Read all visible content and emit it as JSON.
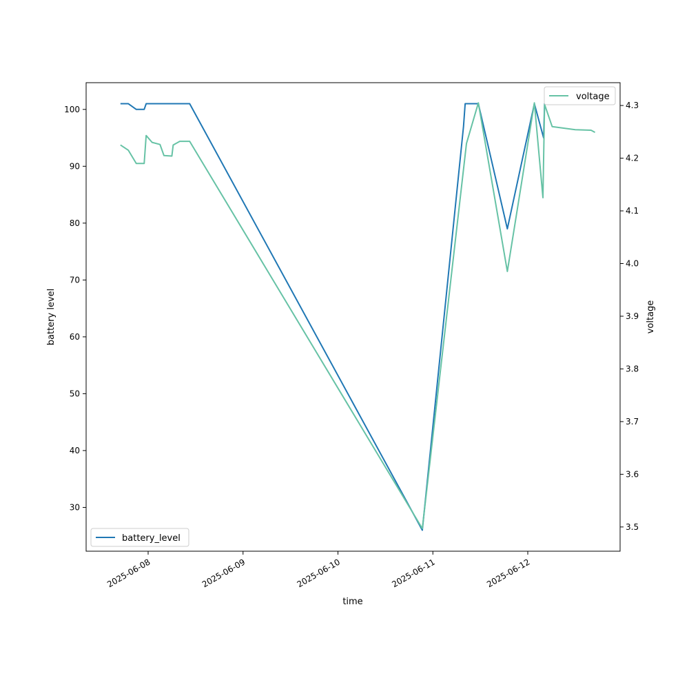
{
  "chart_data": {
    "type": "line",
    "xlabel": "time",
    "x_ticks": [
      "2025-06-08",
      "2025-06-09",
      "2025-06-10",
      "2025-06-11",
      "2025-06-12"
    ],
    "left_axis": {
      "label": "battery level",
      "ticks": [
        30,
        40,
        50,
        60,
        70,
        80,
        90,
        100
      ],
      "ylim": [
        22.3,
        104.7
      ]
    },
    "right_axis": {
      "label": "voltage",
      "ticks": [
        "3.5",
        "3.6",
        "3.7",
        "3.8",
        "3.9",
        "4.0",
        "4.1",
        "4.2",
        "4.3"
      ],
      "ylim": [
        3.454,
        4.3433
      ]
    },
    "grid": false,
    "series": [
      {
        "name": "battery_level",
        "axis": "left",
        "color": "#1f77b4",
        "legend_position": "lower-left",
        "points": [
          [
            "2025-06-07 17:00",
            101
          ],
          [
            "2025-06-07 19:00",
            101
          ],
          [
            "2025-06-07 21:00",
            100
          ],
          [
            "2025-06-07 23:00",
            100
          ],
          [
            "2025-06-07 23:30",
            101
          ],
          [
            "2025-06-08 10:30",
            101
          ],
          [
            "2025-06-10 21:20",
            26
          ],
          [
            "2025-06-11 07:45",
            97
          ],
          [
            "2025-06-11 08:10",
            101
          ],
          [
            "2025-06-11 11:30",
            101
          ],
          [
            "2025-06-11 18:50",
            79
          ],
          [
            "2025-06-12 01:40",
            101
          ],
          [
            "2025-06-12 04:00",
            95
          ],
          [
            "2025-06-12 04:15",
            101
          ],
          [
            "2025-06-12 17:00",
            101
          ]
        ]
      },
      {
        "name": "voltage",
        "axis": "right",
        "color": "#66c2a5",
        "legend_position": "upper-right",
        "points": [
          [
            "2025-06-07 17:00",
            4.225
          ],
          [
            "2025-06-07 19:00",
            4.215
          ],
          [
            "2025-06-07 21:00",
            4.19
          ],
          [
            "2025-06-07 23:00",
            4.19
          ],
          [
            "2025-06-07 23:30",
            4.243
          ],
          [
            "2025-06-08 01:00",
            4.23
          ],
          [
            "2025-06-08 03:00",
            4.226
          ],
          [
            "2025-06-08 04:00",
            4.205
          ],
          [
            "2025-06-08 06:00",
            4.204
          ],
          [
            "2025-06-08 06:20",
            4.225
          ],
          [
            "2025-06-08 08:00",
            4.232
          ],
          [
            "2025-06-08 10:30",
            4.232
          ],
          [
            "2025-06-10 21:20",
            3.497
          ],
          [
            "2025-06-11 08:30",
            4.228
          ],
          [
            "2025-06-11 11:30",
            4.305
          ],
          [
            "2025-06-11 18:50",
            3.985
          ],
          [
            "2025-06-12 01:40",
            4.305
          ],
          [
            "2025-06-12 03:50",
            4.125
          ],
          [
            "2025-06-12 04:15",
            4.302
          ],
          [
            "2025-06-12 06:10",
            4.26
          ],
          [
            "2025-06-12 12:00",
            4.254
          ],
          [
            "2025-06-12 16:00",
            4.253
          ],
          [
            "2025-06-12 17:00",
            4.249
          ]
        ]
      }
    ]
  }
}
